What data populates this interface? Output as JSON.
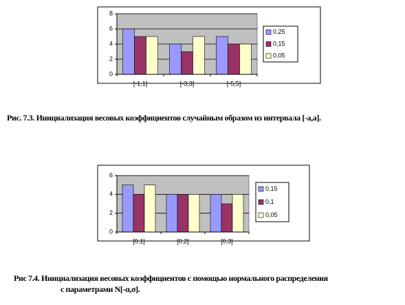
{
  "chart_data": [
    {
      "type": "bar",
      "categories": [
        "[-1,1]",
        "[-3,3]",
        "[-5,5]"
      ],
      "series": [
        {
          "name": "0,25",
          "color": "#9999ff",
          "values": [
            6,
            4,
            5
          ]
        },
        {
          "name": "0,15",
          "color": "#993366",
          "values": [
            5,
            3,
            4
          ]
        },
        {
          "name": "0,05",
          "color": "#ffffcc",
          "values": [
            5,
            5,
            4
          ]
        }
      ],
      "ylim": [
        0,
        8
      ],
      "yticks": [
        0,
        2,
        4,
        6,
        8
      ],
      "grid": true,
      "legend": "right",
      "caption": [
        "Рис. 7.3. Инициализация весовых коэффициентов  случайным образом из интервала [-a,a]."
      ]
    },
    {
      "type": "bar",
      "categories": [
        "[0,1]",
        "[0,2]",
        "[0,3]"
      ],
      "series": [
        {
          "name": "0,15",
          "color": "#9999ff",
          "values": [
            5,
            4,
            4
          ]
        },
        {
          "name": "0,1",
          "color": "#993366",
          "values": [
            4,
            4,
            3
          ]
        },
        {
          "name": "0,05",
          "color": "#ffffcc",
          "values": [
            5,
            4,
            4
          ]
        }
      ],
      "ylim": [
        0,
        6
      ],
      "yticks": [
        0,
        2,
        4,
        6
      ],
      "grid": true,
      "legend": "right",
      "caption": [
        "Рис 7.4. Инициализация  весовых коэффициентов  с помощью нормального распределения",
        "с параметрами N[-α,σ]."
      ]
    }
  ]
}
